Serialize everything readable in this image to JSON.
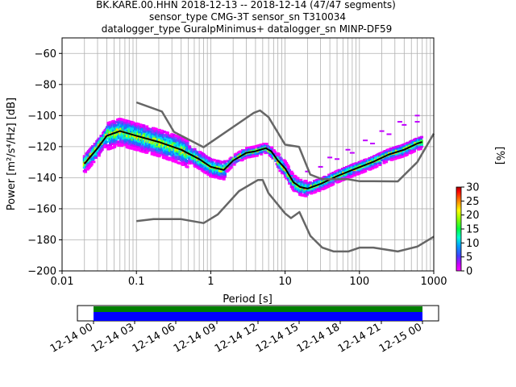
{
  "chart_data": {
    "type": "heatmap",
    "title_lines": [
      "BK.KARE.00.HHN   2018-12-13 -- 2018-12-14  (47/47 segments)",
      "sensor_type CMG-3T sensor_sn T310034",
      "datalogger_type GuralpMinimus+ datalogger_sn MINP-DF59"
    ],
    "xlabel": "Period [s]",
    "ylabel": "Power [m²/s⁴/Hz] [dB]",
    "xscale": "log",
    "xlim": [
      0.01,
      1000
    ],
    "ylim": [
      -200,
      -50
    ],
    "x_ticks": [
      0.01,
      0.1,
      1,
      10,
      100,
      1000
    ],
    "x_tick_labels": [
      "0.01",
      "0.1",
      "1",
      "10",
      "100",
      "1000"
    ],
    "y_ticks": [
      -200,
      -180,
      -160,
      -140,
      -120,
      -100,
      -80,
      -60
    ],
    "y_tick_labels": [
      "−200",
      "−180",
      "−160",
      "−140",
      "−120",
      "−100",
      "−80",
      "−60"
    ],
    "grid": true,
    "series": [
      {
        "name": "",
        "color": "#000000",
        "points": [
          [
            0.02,
            -131
          ],
          [
            0.03,
            -121
          ],
          [
            0.04,
            -113
          ],
          [
            0.06,
            -110
          ],
          [
            0.1,
            -113
          ],
          [
            0.2,
            -117
          ],
          [
            0.4,
            -122
          ],
          [
            0.7,
            -128
          ],
          [
            1.0,
            -133
          ],
          [
            1.5,
            -135
          ],
          [
            2.0,
            -129
          ],
          [
            3.0,
            -124
          ],
          [
            4.0,
            -123
          ],
          [
            5.5,
            -121
          ],
          [
            6.5,
            -123
          ],
          [
            8.0,
            -129
          ],
          [
            10,
            -134
          ],
          [
            13,
            -143
          ],
          [
            16,
            -146
          ],
          [
            20,
            -147
          ],
          [
            30,
            -144
          ],
          [
            50,
            -139
          ],
          [
            80,
            -135
          ],
          [
            150,
            -130
          ],
          [
            250,
            -125
          ],
          [
            400,
            -122
          ],
          [
            600,
            -118
          ],
          [
            700,
            -117
          ]
        ]
      },
      {
        "name": "",
        "color": "#666666",
        "points": [
          [
            0.1,
            -91.5
          ],
          [
            0.22,
            -97.4
          ],
          [
            0.32,
            -110.5
          ],
          [
            0.8,
            -120.4
          ],
          [
            3.8,
            -98.2
          ],
          [
            4.6,
            -96.7
          ],
          [
            6.0,
            -101
          ],
          [
            10,
            -118.7
          ],
          [
            15.4,
            -120.1
          ],
          [
            21.8,
            -138
          ],
          [
            31.6,
            -141
          ],
          [
            45,
            -141
          ],
          [
            70,
            -141
          ],
          [
            101,
            -142.3
          ],
          [
            154,
            -142.3
          ],
          [
            328,
            -142.4
          ],
          [
            600,
            -130
          ],
          [
            1000,
            -111.6
          ]
        ]
      },
      {
        "name": "",
        "color": "#666666",
        "points": [
          [
            0.1,
            -168
          ],
          [
            0.17,
            -166.7
          ],
          [
            0.4,
            -166.7
          ],
          [
            0.8,
            -169.2
          ],
          [
            1.24,
            -163.7
          ],
          [
            2.4,
            -148.6
          ],
          [
            4.3,
            -141.5
          ],
          [
            5.0,
            -141.5
          ],
          [
            6.0,
            -150
          ],
          [
            10,
            -163
          ],
          [
            12,
            -166
          ],
          [
            15.6,
            -162.1
          ],
          [
            21.9,
            -177.5
          ],
          [
            31.6,
            -185
          ],
          [
            45.2,
            -187.5
          ],
          [
            70.8,
            -187.5
          ],
          [
            101,
            -185
          ],
          [
            154,
            -185
          ],
          [
            328,
            -187.5
          ],
          [
            600,
            -184.4
          ],
          [
            1000,
            -178
          ]
        ]
      }
    ],
    "density_cloud": {
      "description_points": [
        [
          0.02,
          -130
        ],
        [
          0.06,
          -112
        ],
        [
          0.4,
          -125
        ],
        [
          1.3,
          -135
        ],
        [
          5,
          -122
        ],
        [
          8,
          -128
        ],
        [
          16,
          -143
        ],
        [
          80,
          -134
        ],
        [
          700,
          -118
        ]
      ]
    },
    "colorbar": {
      "label": "[%]",
      "min": 0,
      "max": 30,
      "ticks": [
        0,
        5,
        10,
        15,
        20,
        25,
        30
      ],
      "tick_labels": [
        "0",
        "5",
        "10",
        "15",
        "20",
        "25",
        "30"
      ]
    },
    "time_axis": {
      "tick_labels": [
        "12-14 00",
        "12-14 03",
        "12-14 06",
        "12-14 09",
        "12-14 12",
        "12-14 15",
        "12-14 18",
        "12-14 21",
        "12-15 00"
      ],
      "coverage_colors": [
        "#008000",
        "#0000ff"
      ]
    }
  }
}
